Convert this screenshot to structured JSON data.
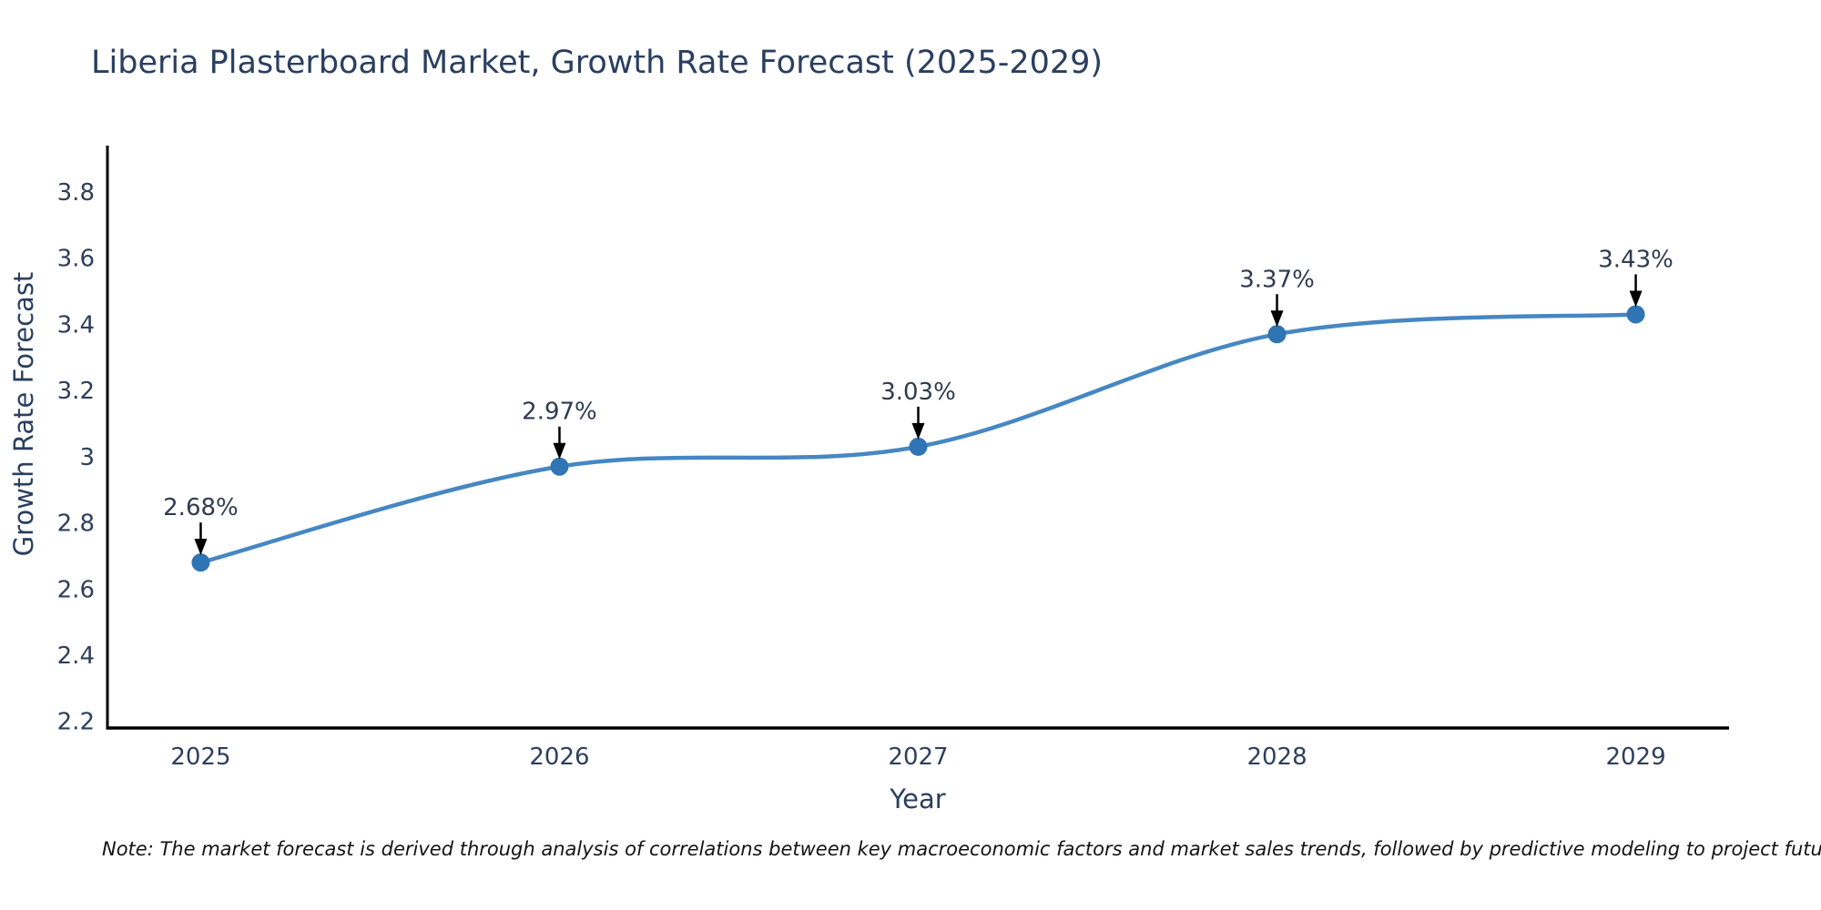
{
  "title": "Liberia Plasterboard Market, Growth Rate Forecast (2025-2029)",
  "note": "Note: The market forecast is derived through analysis of correlations between key macroeconomic factors and market sales trends, followed by predictive modeling to project future sales",
  "chart_data": {
    "type": "line",
    "line_shape": "spline",
    "title": "Liberia Plasterboard Market, Growth Rate Forecast (2025-2029)",
    "xlabel": "Year",
    "ylabel": "Growth Rate Forecast",
    "x": [
      2025,
      2026,
      2027,
      2028,
      2029
    ],
    "values": [
      2.68,
      2.97,
      3.03,
      3.37,
      3.43
    ],
    "point_labels": [
      "2.68%",
      "2.97%",
      "3.03%",
      "3.37%",
      "3.43%"
    ],
    "x_tick_labels": [
      "2025",
      "2026",
      "2027",
      "2028",
      "2029"
    ],
    "y_ticks": [
      2.2,
      2.4,
      2.6,
      2.8,
      3.0,
      3.2,
      3.4,
      3.6,
      3.8
    ],
    "y_tick_labels": [
      "2.2",
      "2.4",
      "2.6",
      "2.8",
      "3",
      "3.2",
      "3.4",
      "3.6",
      "3.8"
    ],
    "xlim": [
      2024.74,
      2029.26
    ],
    "ylim": [
      2.18,
      3.94
    ],
    "grid": false,
    "legend": "none",
    "colors": {
      "line": "#4687c3",
      "marker": "#2f74b3",
      "axis": "#000000",
      "annotation_arrow": "#000000",
      "title_text": "#2a3f5f",
      "tick_text": "#2f3f5c",
      "background": "#ffffff"
    }
  }
}
